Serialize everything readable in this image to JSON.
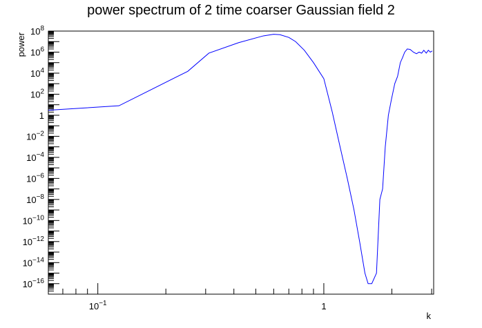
{
  "chart_data": {
    "type": "line",
    "title": "power spectrum of 2 time coarser Gaussian field 2",
    "xlabel": "k",
    "ylabel": "power",
    "xscale": "log",
    "yscale": "log",
    "xlim": [
      0.0604,
      3.062
    ],
    "ylim": [
      1e-17,
      100000000.0
    ],
    "x_ticks": [
      {
        "value": 0.1,
        "label": "10^-1"
      },
      {
        "value": 1,
        "label": "1"
      }
    ],
    "y_ticks": [
      {
        "value": 100000000.0,
        "label": "10^8"
      },
      {
        "value": 1000000.0,
        "label": "10^6"
      },
      {
        "value": 10000.0,
        "label": "10^4"
      },
      {
        "value": 100.0,
        "label": "10^2"
      },
      {
        "value": 1,
        "label": "1"
      },
      {
        "value": 0.01,
        "label": "10^-2"
      },
      {
        "value": 0.0001,
        "label": "10^-4"
      },
      {
        "value": 1e-06,
        "label": "10^-6"
      },
      {
        "value": 1e-08,
        "label": "10^-8"
      },
      {
        "value": 1e-10,
        "label": "10^-10"
      },
      {
        "value": 1e-12,
        "label": "10^-12"
      },
      {
        "value": 1e-14,
        "label": "10^-14"
      },
      {
        "value": 1e-16,
        "label": "10^-16"
      }
    ],
    "grid": false,
    "series": [
      {
        "color": "#0000ff",
        "x": [
          0.0604,
          0.124,
          0.25,
          0.31,
          0.42,
          0.54,
          0.6,
          0.64,
          0.7,
          0.75,
          0.82,
          0.9,
          1.0,
          1.09,
          1.18,
          1.27,
          1.36,
          1.44,
          1.52,
          1.57,
          1.63,
          1.71,
          1.77,
          1.82,
          1.87,
          1.93,
          1.99,
          2.06,
          2.12,
          2.18,
          2.23,
          2.28,
          2.34,
          2.41,
          2.49,
          2.57,
          2.64,
          2.71,
          2.77,
          2.84,
          2.9,
          2.96,
          3.02
        ],
        "y": [
          3,
          8,
          15000.0,
          800000.0,
          8000000.0,
          35000000.0,
          50000000.0,
          45000000.0,
          25000000.0,
          10000000.0,
          1500000.0,
          100000.0,
          3000.0,
          2,
          0.001,
          1e-06,
          1e-09,
          1e-12,
          1e-15,
          1e-16,
          1e-16,
          1e-15,
          1e-08,
          1e-07,
          0.001,
          1.0,
          30.0,
          1000.0,
          5000.0,
          100000.0,
          300000.0,
          1000000.0,
          2000000.0,
          1800000.0,
          1000000.0,
          700000.0,
          1000000.0,
          800000.0,
          1500000.0,
          800000.0,
          1500000.0,
          1000000.0,
          1300000.0
        ]
      }
    ]
  }
}
